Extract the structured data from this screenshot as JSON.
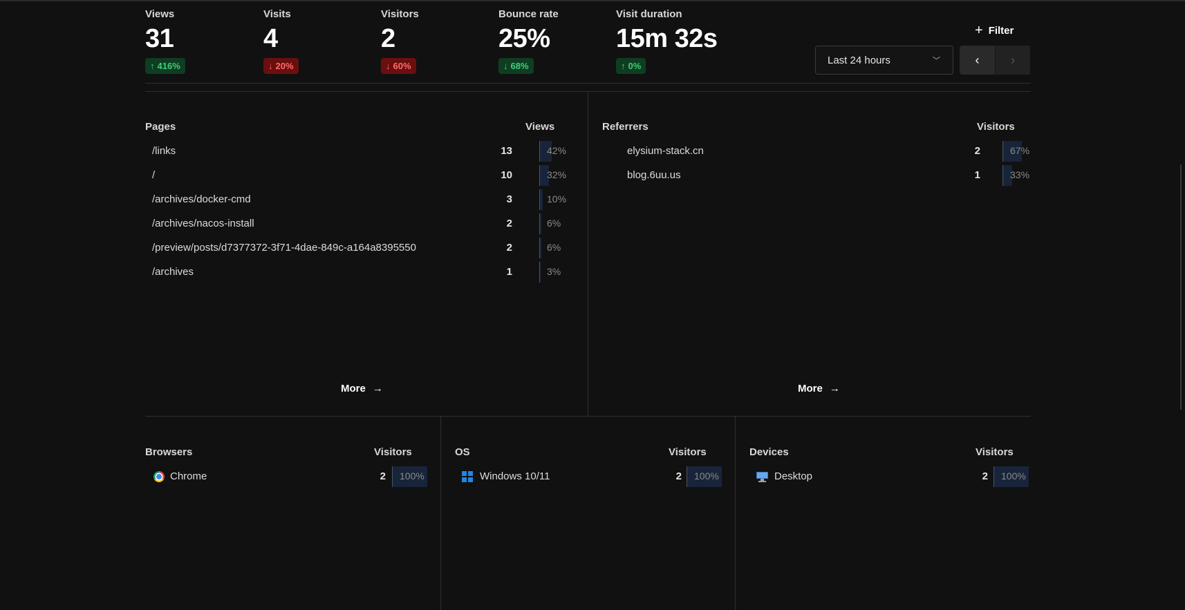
{
  "metrics": [
    {
      "label": "Views",
      "value": "31",
      "change": "416%",
      "direction": "up"
    },
    {
      "label": "Visits",
      "value": "4",
      "change": "20%",
      "direction": "down"
    },
    {
      "label": "Visitors",
      "value": "2",
      "change": "60%",
      "direction": "down"
    },
    {
      "label": "Bounce rate",
      "value": "25%",
      "change": "68%",
      "direction": "down-good"
    },
    {
      "label": "Visit duration",
      "value": "15m 32s",
      "change": "0%",
      "direction": "up"
    }
  ],
  "toolbar": {
    "filter_label": "Filter",
    "range_value": "Last 24 hours",
    "prev_icon": "chevron-left-icon",
    "next_icon": "chevron-right-icon"
  },
  "pages": {
    "title": "Pages",
    "metric": "Views",
    "more_label": "More",
    "rows": [
      {
        "name": "/links",
        "count": "13",
        "pct": "42%",
        "fraction": 0.42
      },
      {
        "name": "/",
        "count": "10",
        "pct": "32%",
        "fraction": 0.32
      },
      {
        "name": "/archives/docker-cmd",
        "count": "3",
        "pct": "10%",
        "fraction": 0.1
      },
      {
        "name": "/archives/nacos-install",
        "count": "2",
        "pct": "6%",
        "fraction": 0.06
      },
      {
        "name": "/preview/posts/d7377372-3f71-4dae-849c-a164a8395550",
        "count": "2",
        "pct": "6%",
        "fraction": 0.06
      },
      {
        "name": "/archives",
        "count": "1",
        "pct": "3%",
        "fraction": 0.03
      }
    ]
  },
  "referrers": {
    "title": "Referrers",
    "metric": "Visitors",
    "more_label": "More",
    "rows": [
      {
        "name": "elysium-stack.cn",
        "count": "2",
        "pct": "67%",
        "fraction": 0.67
      },
      {
        "name": "blog.6uu.us",
        "count": "1",
        "pct": "33%",
        "fraction": 0.33
      }
    ]
  },
  "browsers": {
    "title": "Browsers",
    "metric": "Visitors",
    "rows": [
      {
        "name": "Chrome",
        "icon": "chrome-icon",
        "count": "2",
        "pct": "100%",
        "fraction": 1.0
      }
    ]
  },
  "os": {
    "title": "OS",
    "metric": "Visitors",
    "rows": [
      {
        "name": "Windows 10/11",
        "icon": "windows-icon",
        "count": "2",
        "pct": "100%",
        "fraction": 1.0
      }
    ]
  },
  "devices": {
    "title": "Devices",
    "metric": "Visitors",
    "rows": [
      {
        "name": "Desktop",
        "icon": "desktop-icon",
        "count": "2",
        "pct": "100%",
        "fraction": 1.0
      }
    ]
  },
  "colors": {
    "background": "#111111",
    "up_bg": "#0f3d22",
    "up_fg": "#3ecf77",
    "down_bg": "#6a0f0f",
    "down_fg": "#ff6b6b",
    "bar_fill": "#18243a"
  }
}
